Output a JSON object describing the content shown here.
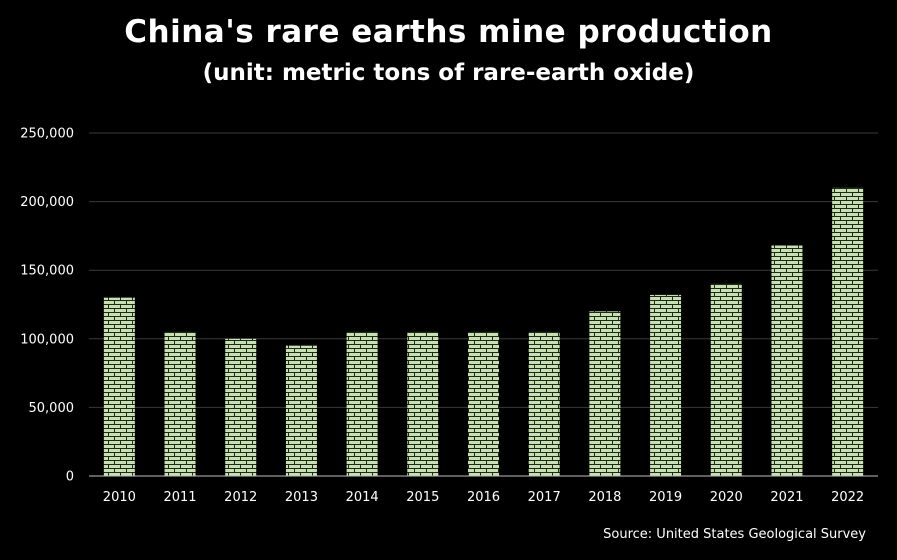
{
  "chart_data": {
    "type": "bar",
    "title": "China's rare earths mine production",
    "subtitle": "(unit: metric tons of rare-earth oxide)",
    "categories": [
      "2010",
      "2011",
      "2012",
      "2013",
      "2014",
      "2015",
      "2016",
      "2017",
      "2018",
      "2019",
      "2020",
      "2021",
      "2022"
    ],
    "values": [
      130000,
      105000,
      100000,
      95000,
      105000,
      105000,
      105000,
      105000,
      120000,
      132000,
      140000,
      168000,
      210000
    ],
    "ylim": [
      0,
      250000
    ],
    "yticks": [
      0,
      50000,
      100000,
      150000,
      200000,
      250000
    ],
    "ytick_labels": [
      "0",
      "50,000",
      "100,000",
      "150,000",
      "200,000",
      "250,000"
    ],
    "xlabel": "",
    "ylabel": "",
    "grid": true,
    "legend": "none",
    "source": "Source: United States Geological Survey",
    "colors": {
      "background": "#000000",
      "bar_fill": "#c6dfb3",
      "bar_pattern": "#1f2a16",
      "gridline": "#3a3a3a",
      "text": "#ffffff"
    }
  }
}
